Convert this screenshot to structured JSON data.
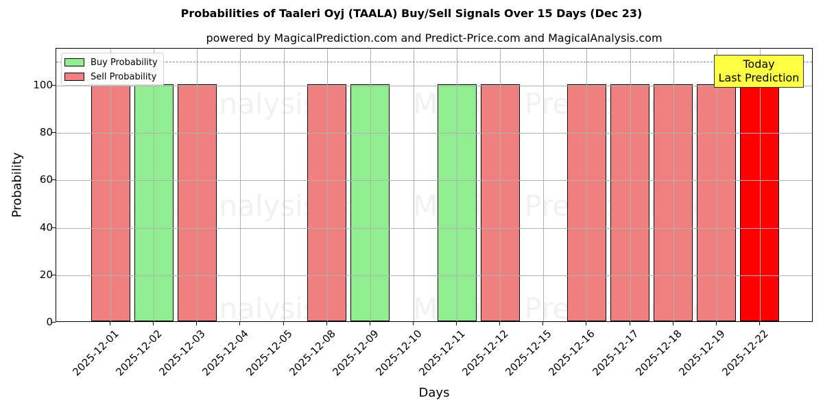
{
  "chart_data": {
    "type": "bar",
    "title": "Probabilities of Taaleri Oyj (TAALA) Buy/Sell Signals Over 15 Days (Dec 23)",
    "subtitle": "powered by MagicalPrediction.com and Predict-Price.com and MagicalAnalysis.com",
    "xlabel": "Days",
    "ylabel": "Probability",
    "ylim": [
      0,
      115.6
    ],
    "yticks": [
      0,
      20,
      40,
      60,
      80,
      100
    ],
    "grid": true,
    "legend_position": "upper left",
    "categories": [
      "2025-12-01",
      "2025-12-02",
      "2025-12-03",
      "2025-12-04",
      "2025-12-05",
      "2025-12-08",
      "2025-12-09",
      "2025-12-10",
      "2025-12-11",
      "2025-12-12",
      "2025-12-15",
      "2025-12-16",
      "2025-12-17",
      "2025-12-18",
      "2025-12-19",
      "2025-12-22"
    ],
    "series": [
      {
        "name": "Buy Probability",
        "color": "#90ee90",
        "values": [
          0,
          100,
          0,
          0,
          0,
          0,
          100,
          0,
          100,
          0,
          0,
          0,
          0,
          0,
          0,
          0
        ]
      },
      {
        "name": "Sell Probability",
        "color": "#f08080",
        "values": [
          100,
          0,
          100,
          0,
          0,
          100,
          0,
          0,
          0,
          100,
          0,
          100,
          100,
          100,
          100,
          100
        ]
      }
    ],
    "highlight": {
      "category": "2025-12-22",
      "color": "#ff0000",
      "label_line1": "Today",
      "label_line2": "Last Prediction"
    },
    "threshold_line": {
      "value": 110,
      "style": "dashed",
      "color": "#808080"
    },
    "watermarks": [
      "MagicalAnalysis.com",
      "MagicalPrediction.com"
    ]
  },
  "labels": {
    "title": "Probabilities of Taaleri Oyj (TAALA) Buy/Sell Signals Over 15 Days (Dec 23)",
    "subtitle": "powered by MagicalPrediction.com and Predict-Price.com and MagicalAnalysis.com",
    "xlabel": "Days",
    "ylabel": "Probability",
    "legend_buy": "Buy Probability",
    "legend_sell": "Sell Probability",
    "today_line1": "Today",
    "today_line2": "Last Prediction",
    "watermark_left": "MagicalAnalysis.com",
    "watermark_right": "Magica Prediction.com"
  },
  "colors": {
    "buy": "#90ee90",
    "sell": "#f08080",
    "today": "#ff0000",
    "annotation_bg": "#ffff44"
  }
}
